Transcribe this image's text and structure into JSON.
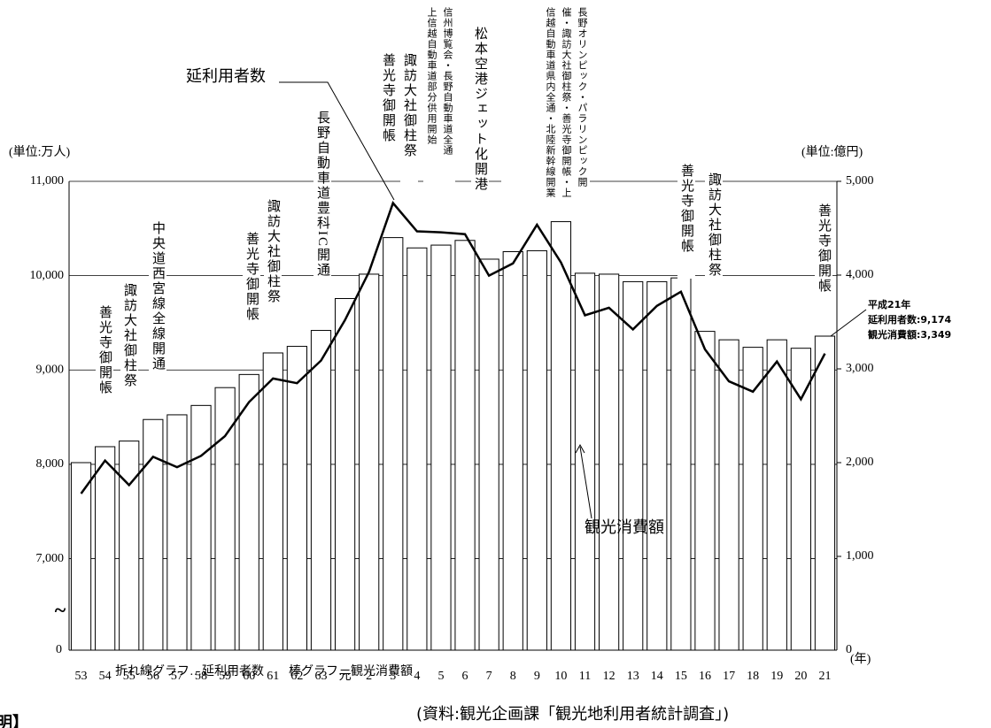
{
  "chart_data": {
    "type": "bar_line",
    "y_unit": "(単位:万人)",
    "y2_unit": "(単位:億円)",
    "y_break_label": "0",
    "y_break_mark": "~",
    "x_unit": "(年)",
    "categories": [
      "53",
      "54",
      "55",
      "56",
      "57",
      "58",
      "59",
      "60",
      "61",
      "62",
      "63",
      "元",
      "2",
      "3",
      "4",
      "5",
      "6",
      "7",
      "8",
      "9",
      "10",
      "11",
      "12",
      "13",
      "14",
      "15",
      "16",
      "17",
      "18",
      "19",
      "20",
      "21"
    ],
    "ylim": [
      6030,
      11000
    ],
    "yticks": [
      {
        "value": 7000,
        "label": "7,000"
      },
      {
        "value": 8000,
        "label": "8,000"
      },
      {
        "value": 9000,
        "label": "9,000"
      },
      {
        "value": 10000,
        "label": "10,000"
      },
      {
        "value": 11000,
        "label": "11,000"
      }
    ],
    "y2lim": [
      0,
      5000
    ],
    "y2ticks": [
      {
        "value": 1000,
        "label": "1,000"
      },
      {
        "value": 2000,
        "label": "2,000"
      },
      {
        "value": 3000,
        "label": "3,000"
      },
      {
        "value": 4000,
        "label": "4,000"
      },
      {
        "value": 5000,
        "label": "5,000"
      }
    ],
    "grid": true,
    "series": [
      {
        "name": "延利用者数",
        "kind": "line",
        "color": "#000000",
        "values": [
          7690,
          8040,
          7780,
          8080,
          7970,
          8090,
          8300,
          8660,
          8910,
          8860,
          9100,
          9530,
          10040,
          10770,
          10470,
          10460,
          10440,
          10000,
          10130,
          10540,
          10140,
          9580,
          9660,
          9430,
          9680,
          9830,
          9220,
          8880,
          8770,
          9090,
          8690,
          9174
        ]
      },
      {
        "name": "観光消費額",
        "kind": "bar",
        "axis": "y2",
        "color": "#ffffff",
        "values": [
          2000,
          2170,
          2230,
          2460,
          2510,
          2610,
          2800,
          2940,
          3170,
          3240,
          3410,
          3750,
          4010,
          4400,
          4290,
          4320,
          4370,
          4170,
          4250,
          4260,
          4570,
          4020,
          4010,
          3930,
          3930,
          3970,
          3400,
          3310,
          3230,
          3310,
          3220,
          3349
        ]
      }
    ],
    "annotations": [
      "善光寺御開帳",
      "諏訪大社御柱祭",
      "中央道西宮線全線開通",
      "善光寺御開帳",
      "諏訪大社御柱祭",
      "長野自動車道豊科IC開通",
      "善光寺御開帳",
      "諏訪大社御柱祭",
      "信州博覧会・長野自動車道全通",
      "上信越自動車道部分供用開始",
      "松本空港ジェット化開港",
      "長野オリンピック・パラリンピック開催・諏訪大社御柱祭・善光寺御開帳・上信越自動車道県内全通・北陸新幹線開業",
      "善光寺御開帳",
      "諏訪大社御柱祭",
      "善光寺御開帳"
    ],
    "note": [
      "平成21年",
      "延利用者数:9,174",
      "観光消費額:3,349"
    ],
    "legend_text": "折れ線グラフ…延利用者数　　棒グラフ…観光消費額",
    "source": "(資料:観光企画課「観光地利用者統計調査」)",
    "footer_fragment": "明】"
  }
}
